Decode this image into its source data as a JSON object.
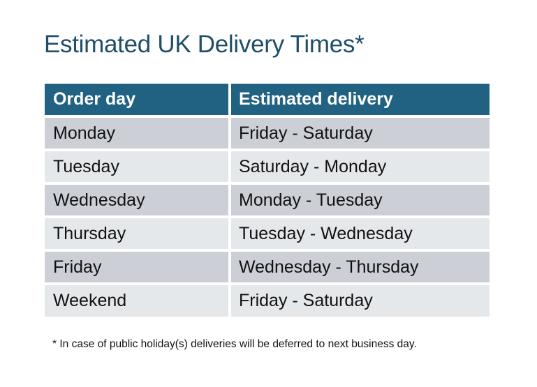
{
  "title": "Estimated UK Delivery Times*",
  "table": {
    "headers": [
      "Order day",
      "Estimated delivery"
    ],
    "rows": [
      [
        "Monday",
        "Friday - Saturday"
      ],
      [
        "Tuesday",
        "Saturday - Monday"
      ],
      [
        "Wednesday",
        "Monday - Tuesday"
      ],
      [
        "Thursday",
        "Tuesday - Wednesday"
      ],
      [
        "Friday",
        "Wednesday - Thursday"
      ],
      [
        "Weekend",
        "Friday - Saturday"
      ]
    ]
  },
  "footnote": "* In case of public holiday(s) deliveries will be deferred to next business day.",
  "colors": {
    "title": "#1f4e6b",
    "header_bg": "#216182",
    "row_dark": "#ccd0d6",
    "row_light": "#e5e8eb"
  }
}
